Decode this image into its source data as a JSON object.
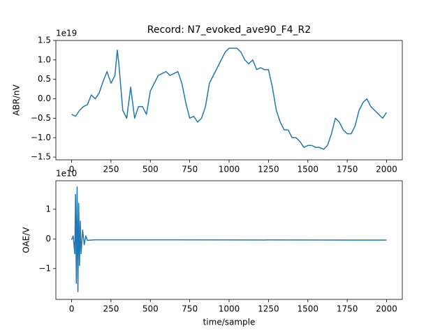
{
  "chart_data": [
    {
      "type": "line",
      "title": "Record: N7_evoked_ave90_F4_R2",
      "ylabel": "ABR/nV",
      "offset_label": "1e19",
      "x": [
        0,
        25,
        50,
        75,
        100,
        125,
        150,
        175,
        200,
        225,
        250,
        275,
        290,
        300,
        325,
        350,
        375,
        400,
        425,
        450,
        475,
        500,
        525,
        550,
        575,
        600,
        625,
        650,
        675,
        700,
        725,
        750,
        775,
        800,
        825,
        850,
        875,
        900,
        925,
        950,
        975,
        1000,
        1025,
        1050,
        1075,
        1100,
        1125,
        1150,
        1175,
        1200,
        1225,
        1250,
        1275,
        1300,
        1325,
        1350,
        1375,
        1400,
        1425,
        1450,
        1475,
        1500,
        1525,
        1550,
        1575,
        1600,
        1625,
        1650,
        1675,
        1700,
        1725,
        1750,
        1775,
        1800,
        1825,
        1850,
        1875,
        1900,
        1925,
        1950,
        1975,
        2000
      ],
      "series": [
        {
          "color": "#1f77b4",
          "values": [
            -0.4,
            -0.45,
            -0.3,
            -0.2,
            -0.15,
            0.1,
            0.0,
            0.15,
            0.45,
            0.7,
            0.4,
            0.6,
            1.25,
            0.9,
            -0.3,
            -0.5,
            0.3,
            -0.5,
            -0.2,
            -0.2,
            -0.4,
            0.2,
            0.4,
            0.6,
            0.65,
            0.7,
            0.6,
            0.65,
            0.7,
            0.4,
            -0.1,
            -0.5,
            -0.45,
            -0.6,
            -0.5,
            -0.2,
            0.4,
            0.6,
            0.8,
            1.0,
            1.2,
            1.3,
            1.3,
            1.3,
            1.2,
            1.0,
            0.9,
            1.0,
            0.75,
            0.8,
            0.75,
            0.75,
            0.3,
            -0.3,
            -0.6,
            -0.8,
            -0.8,
            -1.0,
            -1.0,
            -1.1,
            -1.25,
            -1.2,
            -1.2,
            -1.25,
            -1.25,
            -1.3,
            -1.2,
            -0.9,
            -0.5,
            -0.6,
            -0.8,
            -0.9,
            -0.9,
            -0.7,
            -0.3,
            -0.1,
            0.0,
            -0.2,
            -0.3,
            -0.4,
            -0.5,
            -0.35
          ]
        }
      ],
      "xlim": [
        -100,
        2100
      ],
      "xticks": [
        0,
        250,
        500,
        750,
        1000,
        1250,
        1500,
        1750,
        2000
      ],
      "ylim": [
        -1.57,
        1.5
      ],
      "yticks": [
        {
          "value": -1.5,
          "label": "−1.5"
        },
        {
          "value": -1.0,
          "label": "−1.0"
        },
        {
          "value": -0.5,
          "label": "−0.5"
        },
        {
          "value": 0,
          "label": "0.0"
        },
        0.5,
        {
          "value": 1.0,
          "label": "1.0"
        },
        1.5
      ]
    },
    {
      "type": "line",
      "ylabel": "OAE/V",
      "xlabel": "time/sample",
      "offset_label": "1e10",
      "x": [
        0,
        10,
        20,
        25,
        30,
        35,
        40,
        45,
        50,
        55,
        60,
        70,
        80,
        90,
        100,
        150,
        250,
        2000
      ],
      "series": [
        {
          "color": "#1f77b4",
          "values": [
            -0.03,
            0.1,
            -0.5,
            1.5,
            -1.5,
            1.75,
            -1.78,
            1.2,
            -0.9,
            0.6,
            -0.5,
            0.3,
            -0.2,
            0.1,
            -0.05,
            -0.03,
            -0.03,
            -0.04
          ]
        }
      ],
      "xlim": [
        -100,
        2100
      ],
      "xticks": [
        0,
        250,
        500,
        750,
        1000,
        1250,
        1500,
        1750,
        2000
      ],
      "ylim": [
        -2.04,
        1.96
      ],
      "yticks": [
        {
          "value": -1,
          "label": "−1"
        },
        0,
        1
      ]
    }
  ]
}
